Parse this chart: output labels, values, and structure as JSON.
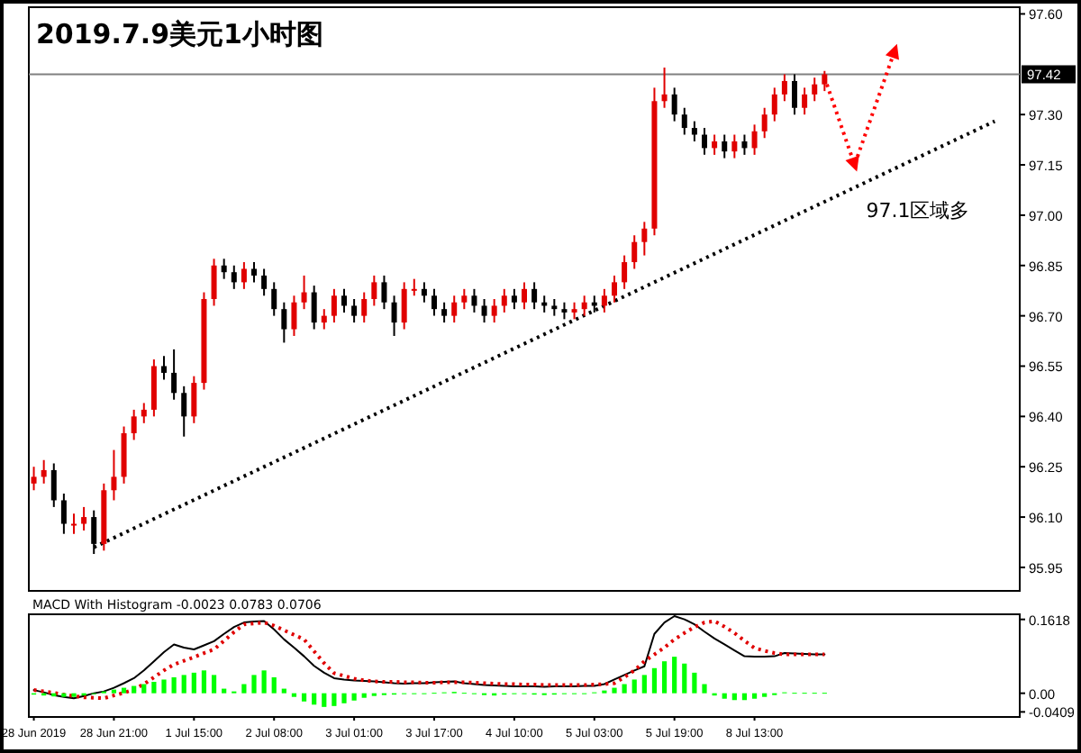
{
  "chart_data": [
    {
      "type": "candlestick",
      "title": "2019.7.9美元1小时图",
      "tick_labels": "y",
      "categories": [
        null,
        null,
        null,
        null,
        null,
        null,
        null,
        null,
        null,
        null,
        null,
        null,
        null,
        null,
        null,
        null,
        null,
        null,
        null,
        null,
        null,
        null,
        null,
        null,
        null,
        null,
        null,
        null,
        null,
        null,
        null,
        null,
        null,
        null,
        null,
        null,
        null,
        null,
        null,
        null,
        null,
        null,
        null,
        null,
        null,
        null,
        null,
        null,
        null,
        null,
        null,
        null,
        null,
        null,
        null,
        null,
        null,
        null,
        null,
        null,
        null,
        null,
        null,
        null,
        null,
        null,
        null,
        null,
        null,
        null,
        null,
        null,
        null,
        null,
        null,
        null,
        null,
        null,
        null,
        null,
        null,
        null,
        null,
        null,
        null,
        null,
        null,
        null,
        null,
        null,
        null,
        null,
        null,
        null,
        null,
        null,
        null,
        null,
        null
      ],
      "ohlc": [
        [
          96.2,
          96.25,
          96.18,
          96.22
        ],
        [
          96.22,
          96.27,
          96.2,
          96.24
        ],
        [
          96.24,
          96.26,
          96.13,
          96.15
        ],
        [
          96.15,
          96.17,
          96.05,
          96.08
        ],
        [
          96.08,
          96.11,
          96.05,
          96.08
        ],
        [
          96.08,
          96.13,
          96.06,
          96.1
        ],
        [
          96.1,
          96.12,
          95.99,
          96.02
        ],
        [
          96.02,
          96.2,
          96.0,
          96.18
        ],
        [
          96.18,
          96.3,
          96.15,
          96.22
        ],
        [
          96.22,
          96.37,
          96.2,
          96.35
        ],
        [
          96.35,
          96.42,
          96.33,
          96.4
        ],
        [
          96.4,
          96.44,
          96.38,
          96.42
        ],
        [
          96.42,
          96.57,
          96.4,
          96.55
        ],
        [
          96.55,
          96.58,
          96.51,
          96.53
        ],
        [
          96.53,
          96.6,
          96.45,
          96.47
        ],
        [
          96.47,
          96.49,
          96.34,
          96.4
        ],
        [
          96.4,
          96.52,
          96.38,
          96.5
        ],
        [
          96.5,
          96.77,
          96.48,
          96.75
        ],
        [
          96.75,
          96.87,
          96.73,
          96.85
        ],
        [
          96.85,
          96.87,
          96.81,
          96.83
        ],
        [
          96.83,
          96.85,
          96.78,
          96.8
        ],
        [
          96.8,
          96.86,
          96.78,
          96.84
        ],
        [
          96.84,
          96.86,
          96.8,
          96.82
        ],
        [
          96.82,
          96.84,
          96.76,
          96.78
        ],
        [
          96.78,
          96.8,
          96.7,
          96.72
        ],
        [
          96.72,
          96.74,
          96.62,
          96.66
        ],
        [
          96.66,
          96.76,
          96.64,
          96.74
        ],
        [
          96.74,
          96.82,
          96.72,
          96.77
        ],
        [
          96.77,
          96.79,
          96.66,
          96.68
        ],
        [
          96.68,
          96.72,
          96.66,
          96.7
        ],
        [
          96.7,
          96.78,
          96.68,
          96.76
        ],
        [
          96.76,
          96.78,
          96.71,
          96.73
        ],
        [
          96.73,
          96.75,
          96.68,
          96.7
        ],
        [
          96.7,
          96.77,
          96.68,
          96.75
        ],
        [
          96.75,
          96.82,
          96.73,
          96.8
        ],
        [
          96.8,
          96.82,
          96.72,
          96.74
        ],
        [
          96.74,
          96.76,
          96.64,
          96.68
        ],
        [
          96.68,
          96.8,
          96.66,
          96.78
        ],
        [
          96.78,
          96.81,
          96.76,
          96.78
        ],
        [
          96.78,
          96.8,
          96.74,
          96.76
        ],
        [
          96.76,
          96.78,
          96.7,
          96.72
        ],
        [
          96.72,
          96.74,
          96.68,
          96.7
        ],
        [
          96.7,
          96.76,
          96.68,
          96.74
        ],
        [
          96.74,
          96.78,
          96.72,
          96.76
        ],
        [
          96.76,
          96.78,
          96.71,
          96.73
        ],
        [
          96.73,
          96.75,
          96.68,
          96.7
        ],
        [
          96.7,
          96.75,
          96.68,
          96.73
        ],
        [
          96.73,
          96.78,
          96.71,
          96.76
        ],
        [
          96.76,
          96.78,
          96.72,
          96.74
        ],
        [
          96.74,
          96.8,
          96.72,
          96.78
        ],
        [
          96.78,
          96.8,
          96.72,
          96.74
        ],
        [
          96.74,
          96.76,
          96.71,
          96.73
        ],
        [
          96.73,
          96.75,
          96.7,
          96.72
        ],
        [
          96.72,
          96.74,
          96.69,
          96.71
        ],
        [
          96.71,
          96.74,
          96.69,
          96.72
        ],
        [
          96.72,
          96.76,
          96.7,
          96.74
        ],
        [
          96.74,
          96.76,
          96.71,
          96.73
        ],
        [
          96.73,
          96.78,
          96.71,
          96.76
        ],
        [
          96.76,
          96.82,
          96.74,
          96.8
        ],
        [
          96.8,
          96.88,
          96.78,
          96.86
        ],
        [
          96.86,
          96.94,
          96.84,
          96.92
        ],
        [
          96.92,
          96.98,
          96.88,
          96.96
        ],
        [
          96.96,
          97.38,
          96.94,
          97.34
        ],
        [
          97.34,
          97.44,
          97.32,
          97.36
        ],
        [
          97.36,
          97.38,
          97.28,
          97.3
        ],
        [
          97.3,
          97.32,
          97.24,
          97.26
        ],
        [
          97.26,
          97.28,
          97.22,
          97.24
        ],
        [
          97.24,
          97.26,
          97.18,
          97.2
        ],
        [
          97.2,
          97.24,
          97.18,
          97.22
        ],
        [
          97.22,
          97.24,
          97.17,
          97.19
        ],
        [
          97.19,
          97.24,
          97.17,
          97.22
        ],
        [
          97.22,
          97.24,
          97.18,
          97.2
        ],
        [
          97.2,
          97.27,
          97.18,
          97.25
        ],
        [
          97.25,
          97.32,
          97.23,
          97.3
        ],
        [
          97.3,
          97.38,
          97.28,
          97.36
        ],
        [
          97.36,
          97.42,
          97.34,
          97.4
        ],
        [
          97.4,
          97.42,
          97.3,
          97.32
        ],
        [
          97.32,
          97.38,
          97.3,
          97.36
        ],
        [
          97.36,
          97.41,
          97.34,
          97.39
        ],
        [
          97.39,
          97.43,
          97.37,
          97.42
        ],
        null,
        null,
        null,
        null,
        null,
        null,
        null,
        null,
        null,
        null,
        null,
        null,
        null,
        null,
        null,
        null,
        null,
        null,
        null
      ],
      "colors": [
        "#e00000",
        "#e00000",
        "#000000",
        "#000000",
        "#e00000",
        "#e00000",
        "#000000",
        "#e00000",
        "#e00000",
        "#e00000",
        "#e00000",
        "#e00000",
        "#e00000",
        "#000000",
        "#000000",
        "#000000",
        "#e00000",
        "#e00000",
        "#e00000",
        "#000000",
        "#000000",
        "#e00000",
        "#000000",
        "#000000",
        "#000000",
        "#000000",
        "#e00000",
        "#e00000",
        "#000000",
        "#e00000",
        "#e00000",
        "#000000",
        "#000000",
        "#e00000",
        "#e00000",
        "#000000",
        "#000000",
        "#e00000",
        "#e00000",
        "#000000",
        "#000000",
        "#000000",
        "#e00000",
        "#e00000",
        "#000000",
        "#000000",
        "#e00000",
        "#e00000",
        "#000000",
        "#e00000",
        "#000000",
        "#000000",
        "#000000",
        "#000000",
        "#e00000",
        "#e00000",
        "#000000",
        "#e00000",
        "#e00000",
        "#e00000",
        "#e00000",
        "#e00000",
        "#e00000",
        "#e00000",
        "#000000",
        "#000000",
        "#000000",
        "#000000",
        "#e00000",
        "#000000",
        "#e00000",
        "#000000",
        "#e00000",
        "#e00000",
        "#e00000",
        "#e00000",
        "#000000",
        "#e00000",
        "#e00000",
        "#e00000",
        null,
        null,
        null,
        null,
        null,
        null,
        null,
        null,
        null,
        null,
        null,
        null,
        null,
        null,
        null,
        null,
        null,
        null,
        null
      ],
      "series": [
        {
          "type": "line",
          "color": "#000000",
          "line_style": "dotted",
          "values": [
            null,
            null,
            null,
            null,
            null,
            null,
            96.01,
            null,
            null,
            null,
            null,
            null,
            null,
            null,
            null,
            null,
            null,
            null,
            null,
            null,
            null,
            null,
            null,
            null,
            null,
            null,
            null,
            null,
            null,
            null,
            null,
            null,
            null,
            null,
            null,
            null,
            null,
            null,
            null,
            null,
            null,
            null,
            null,
            null,
            null,
            null,
            null,
            null,
            null,
            null,
            null,
            null,
            null,
            null,
            null,
            null,
            null,
            null,
            null,
            null,
            null,
            null,
            null,
            null,
            null,
            null,
            null,
            null,
            null,
            null,
            null,
            null,
            null,
            null,
            null,
            null,
            null,
            null,
            null,
            null,
            null,
            null,
            null,
            null,
            null,
            null,
            null,
            null,
            null,
            null,
            null,
            null,
            null,
            null,
            null,
            null,
            97.28,
            null,
            null
          ]
        },
        {
          "type": "line",
          "color": "#ff0000",
          "line_style": "dotted",
          "marker": "triangle",
          "values": [
            null,
            null,
            null,
            null,
            null,
            null,
            null,
            null,
            null,
            null,
            null,
            null,
            null,
            null,
            null,
            null,
            null,
            null,
            null,
            null,
            null,
            null,
            null,
            null,
            null,
            null,
            null,
            null,
            null,
            null,
            null,
            null,
            null,
            null,
            null,
            null,
            null,
            null,
            null,
            null,
            null,
            null,
            null,
            null,
            null,
            null,
            null,
            null,
            null,
            null,
            null,
            null,
            null,
            null,
            null,
            null,
            null,
            null,
            null,
            null,
            null,
            null,
            null,
            null,
            null,
            null,
            null,
            null,
            null,
            null,
            null,
            null,
            null,
            null,
            null,
            null,
            null,
            null,
            null,
            97.41,
            null,
            null,
            97.15,
            null,
            null,
            null,
            97.49,
            null,
            null,
            null,
            null,
            null,
            null,
            null,
            null,
            null,
            null,
            null,
            null
          ]
        }
      ],
      "ref_lines": [
        {
          "axis": "y",
          "value": 97.42,
          "label": "97.42",
          "color": "#808080"
        }
      ],
      "annotations": [
        "97.1区域多"
      ],
      "ylim": [
        95.88,
        97.62
      ],
      "yticks": [
        {
          "value": 95.95,
          "label": "95.95"
        },
        {
          "value": 96.1,
          "label": "96.10"
        },
        {
          "value": 96.25,
          "label": "96.25"
        },
        {
          "value": 96.4,
          "label": "96.40"
        },
        {
          "value": 96.55,
          "label": "96.55"
        },
        {
          "value": 96.7,
          "label": "96.70"
        },
        {
          "value": 96.85,
          "label": "96.85"
        },
        {
          "value": 97.0,
          "label": "97.00"
        },
        {
          "value": 97.15,
          "label": "97.15"
        },
        {
          "value": 97.3,
          "label": "97.30"
        },
        {
          "value": 97.6,
          "label": "97.60"
        }
      ]
    },
    {
      "type": "line",
      "title": "MACD With Histogram -0.0023 0.0783 0.0706",
      "categories": [
        "28 Jun 2019",
        null,
        null,
        null,
        null,
        null,
        null,
        null,
        "28 Jun 21:00",
        null,
        null,
        null,
        null,
        null,
        null,
        null,
        "1 Jul 15:00",
        null,
        null,
        null,
        null,
        null,
        null,
        null,
        "2 Jul 08:00",
        null,
        null,
        null,
        null,
        null,
        null,
        null,
        "3 Jul 01:00",
        null,
        null,
        null,
        null,
        null,
        null,
        null,
        "3 Jul 17:00",
        null,
        null,
        null,
        null,
        null,
        null,
        null,
        "4 Jul 10:00",
        null,
        null,
        null,
        null,
        null,
        null,
        null,
        "5 Jul 03:00",
        null,
        null,
        null,
        null,
        null,
        null,
        null,
        "5 Jul 19:00",
        null,
        null,
        null,
        null,
        null,
        null,
        null,
        "8 Jul 13:00",
        null,
        null,
        null,
        null,
        null,
        null,
        null,
        null,
        null,
        null,
        null,
        null,
        null,
        null,
        null,
        null,
        null,
        null,
        null,
        null,
        null,
        null,
        null,
        null,
        null,
        null
      ],
      "series": [
        {
          "type": "bar",
          "color": "#00ff00",
          "values": [
            -0.003,
            -0.005,
            -0.007,
            -0.008,
            -0.008,
            -0.005,
            -0.002,
            0.004,
            0.008,
            0.012,
            0.016,
            0.02,
            0.025,
            0.03,
            0.035,
            0.04,
            0.045,
            0.05,
            0.04,
            0.01,
            0.004,
            0.02,
            0.04,
            0.05,
            0.035,
            0.01,
            -0.008,
            -0.018,
            -0.025,
            -0.03,
            -0.028,
            -0.022,
            -0.016,
            -0.01,
            -0.006,
            -0.004,
            -0.003,
            -0.002,
            -0.002,
            -0.001,
            0.001,
            0.002,
            0.003,
            0.001,
            -0.002,
            -0.004,
            -0.005,
            -0.003,
            -0.002,
            -0.002,
            -0.003,
            -0.004,
            -0.003,
            -0.002,
            -0.002,
            -0.001,
            0.002,
            0.006,
            0.012,
            0.02,
            0.03,
            0.04,
            0.055,
            0.07,
            0.08,
            0.065,
            0.045,
            0.02,
            -0.005,
            -0.012,
            -0.015,
            -0.015,
            -0.012,
            -0.008,
            -0.004,
            0.002,
            0.001,
            0.001,
            0.001,
            0.001,
            null,
            null,
            null,
            null,
            null,
            null,
            null,
            null,
            null,
            null,
            null,
            null,
            null,
            null,
            null,
            null,
            null,
            null,
            null
          ]
        },
        {
          "type": "line",
          "color": "#000000",
          "line_style": "solid",
          "values": [
            0.007,
            0.002,
            -0.004,
            -0.008,
            -0.011,
            -0.006,
            0.0,
            0.004,
            0.012,
            0.022,
            0.033,
            0.05,
            0.07,
            0.09,
            0.107,
            0.1,
            0.096,
            0.105,
            0.114,
            0.13,
            0.145,
            0.155,
            0.157,
            0.158,
            0.14,
            0.118,
            0.1,
            0.081,
            0.06,
            0.045,
            0.033,
            0.03,
            0.028,
            0.027,
            0.026,
            0.024,
            0.022,
            0.021,
            0.022,
            0.022,
            0.024,
            0.025,
            0.026,
            0.022,
            0.02,
            0.018,
            0.017,
            0.016,
            0.015,
            0.015,
            0.015,
            0.014,
            0.015,
            0.015,
            0.015,
            0.016,
            0.016,
            0.02,
            0.03,
            0.04,
            0.05,
            0.059,
            0.13,
            0.155,
            0.169,
            0.162,
            0.151,
            0.135,
            0.12,
            0.107,
            0.094,
            0.081,
            0.08,
            0.08,
            0.081,
            0.088,
            0.087,
            0.086,
            0.085,
            0.085,
            null,
            null,
            null,
            null,
            null,
            null,
            null,
            null,
            null,
            null,
            null,
            null,
            null,
            null,
            null,
            null,
            null,
            null,
            null
          ]
        },
        {
          "type": "line",
          "color": "#e00000",
          "line_style": "dotted",
          "values": [
            0.007,
            0.004,
            0.001,
            -0.003,
            -0.006,
            -0.009,
            -0.01,
            -0.011,
            -0.005,
            0.001,
            0.008,
            0.02,
            0.035,
            0.05,
            0.063,
            0.071,
            0.079,
            0.088,
            0.096,
            0.115,
            0.134,
            0.151,
            0.153,
            0.155,
            0.148,
            0.138,
            0.128,
            0.118,
            0.092,
            0.066,
            0.044,
            0.038,
            0.032,
            0.028,
            0.026,
            0.025,
            0.025,
            0.024,
            0.024,
            0.023,
            0.023,
            0.024,
            0.024,
            0.024,
            0.023,
            0.022,
            0.021,
            0.02,
            0.02,
            0.019,
            0.019,
            0.018,
            0.018,
            0.018,
            0.018,
            0.018,
            0.019,
            0.02,
            0.022,
            0.035,
            0.05,
            0.07,
            0.085,
            0.1,
            0.118,
            0.132,
            0.145,
            0.155,
            0.158,
            0.146,
            0.132,
            0.115,
            0.099,
            0.093,
            0.088,
            0.085,
            0.085,
            0.085,
            0.085,
            0.085,
            null,
            null,
            null,
            null,
            null,
            null,
            null,
            null,
            null,
            null,
            null,
            null,
            null,
            null,
            null,
            null,
            null,
            null,
            null
          ]
        }
      ],
      "ylim": [
        -0.052,
        0.173
      ],
      "yticks": [
        {
          "value": -0.0409,
          "label": "-0.0409"
        },
        {
          "value": 0,
          "label": "0.00"
        },
        {
          "value": 0.1618,
          "label": "0.1618"
        }
      ]
    }
  ]
}
